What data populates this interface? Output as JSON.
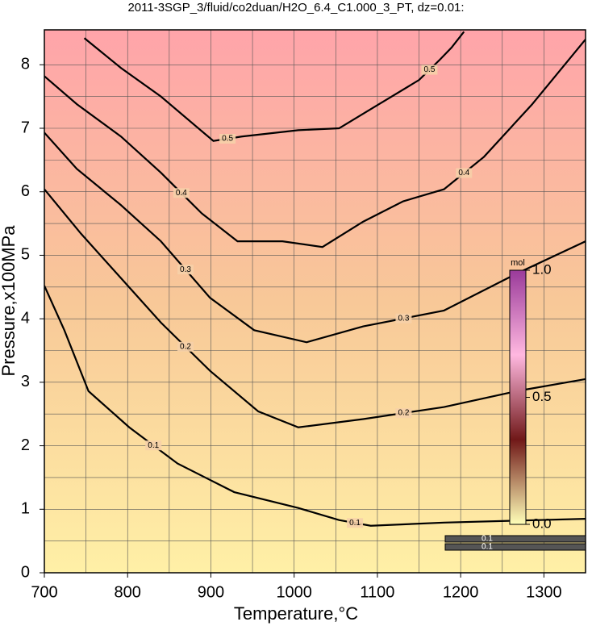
{
  "chart_data": {
    "type": "contour",
    "title": "2011-3SGP_3/fluid/co2duan/H2O_6.4_C1.000_3_PT, dz=0.01:",
    "x_label": "Temperature,°C",
    "y_label": "Pressure,x100MPa",
    "xlim": [
      700,
      1350
    ],
    "ylim": [
      0,
      8.55
    ],
    "xticks": [
      700,
      800,
      900,
      1000,
      1100,
      1200,
      1300
    ],
    "yticks": [
      0,
      1,
      2,
      3,
      4,
      5,
      6,
      7,
      8
    ],
    "xgrid": [
      750,
      800,
      850,
      900,
      950,
      1000,
      1050,
      1100,
      1150,
      1200,
      1250,
      1300
    ],
    "ygrid": [
      0.5,
      1,
      1.5,
      2,
      2.5,
      3,
      3.5,
      4,
      4.5,
      5,
      5.5,
      6,
      6.5,
      7,
      7.5,
      8
    ],
    "fill_colors": [
      "#fff0a6",
      "#f8c898",
      "#ffa4aa"
    ],
    "contours": [
      {
        "level": 0.5,
        "x": [
          748,
          792,
          840,
          903,
          937,
          1005,
          1054,
          1102,
          1150,
          1175,
          1189,
          1204
        ],
        "y": [
          8.42,
          7.95,
          7.5,
          6.8,
          6.87,
          6.97,
          7.0,
          7.38,
          7.76,
          8.08,
          8.27,
          8.52
        ]
      },
      {
        "level": 0.4,
        "x": [
          700,
          739,
          792,
          840,
          889,
          932,
          986,
          1034,
          1083,
          1131,
          1180,
          1228,
          1286,
          1350
        ],
        "y": [
          7.82,
          7.38,
          6.87,
          6.3,
          5.66,
          5.22,
          5.22,
          5.13,
          5.53,
          5.85,
          6.04,
          6.55,
          7.38,
          8.4
        ]
      },
      {
        "level": 0.3,
        "x": [
          700,
          739,
          792,
          840,
          899,
          952,
          1015,
          1083,
          1180,
          1267,
          1350
        ],
        "y": [
          6.93,
          6.36,
          5.79,
          5.22,
          4.33,
          3.82,
          3.63,
          3.88,
          4.13,
          4.71,
          5.22
        ]
      },
      {
        "level": 0.2,
        "x": [
          700,
          744,
          792,
          840,
          899,
          957,
          1005,
          1083,
          1180,
          1267,
          1350
        ],
        "y": [
          6.04,
          5.34,
          4.64,
          3.94,
          3.18,
          2.54,
          2.29,
          2.42,
          2.61,
          2.86,
          3.05
        ]
      },
      {
        "level": 0.1,
        "x": [
          700,
          724,
          753,
          802,
          860,
          928,
          1005,
          1054,
          1092,
          1180,
          1350
        ],
        "y": [
          4.52,
          3.82,
          2.86,
          2.29,
          1.72,
          1.27,
          1.02,
          0.83,
          0.74,
          0.79,
          0.85
        ]
      }
    ],
    "colorbar": {
      "label": "mol",
      "lim": [
        0,
        1
      ],
      "ticks": [
        {
          "value": 0,
          "label": "0.0"
        },
        {
          "value": 0.5,
          "label": "0.5"
        },
        {
          "value": 1,
          "label": "1.0"
        }
      ],
      "colors": [
        "#ffffb8",
        "#701818",
        "#ffb8e0",
        "#9a3a9a"
      ]
    },
    "inset_labels": [
      "0.1",
      "0.1"
    ]
  }
}
